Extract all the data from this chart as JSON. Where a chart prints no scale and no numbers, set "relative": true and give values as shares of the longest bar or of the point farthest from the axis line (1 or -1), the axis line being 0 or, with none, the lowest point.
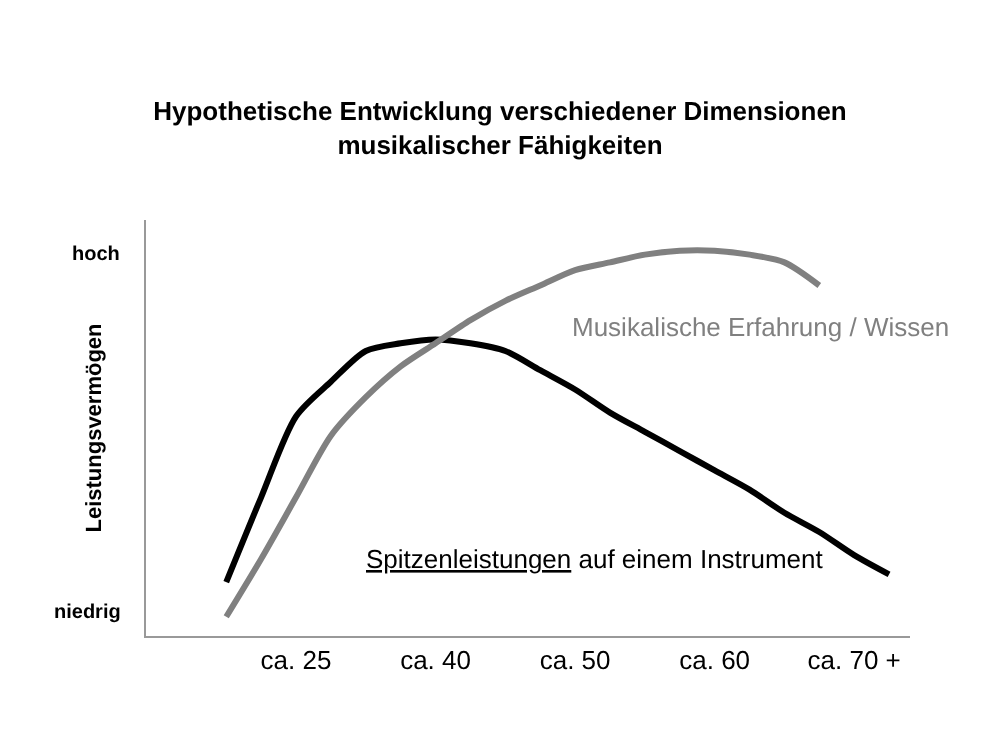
{
  "chart_data": {
    "type": "line",
    "title": "Hypothetische Entwicklung verschiedener Dimensionen\nmusikalischer Fähigkeiten",
    "ylabel": "Leistungsvermögen",
    "relative": true,
    "legend": false,
    "marker": "none",
    "line_style": "solid",
    "categories": [
      null,
      null,
      "ca. 25",
      null,
      null,
      null,
      "ca. 40",
      null,
      null,
      null,
      "ca. 50",
      null,
      null,
      null,
      "ca. 60",
      null,
      null,
      null,
      "ca. 70 +",
      null
    ],
    "series": [
      {
        "name": "Spitzenleistungen auf einem Instrument",
        "color": "#000000",
        "values": [
          0.14,
          0.36,
          0.57,
          0.66,
          0.74,
          0.76,
          0.77,
          0.76,
          0.74,
          0.69,
          0.64,
          0.58,
          0.53,
          0.48,
          0.43,
          0.38,
          0.32,
          0.27,
          0.21,
          0.16
        ]
      },
      {
        "name": "Musikalische Erfahrung / Wissen",
        "color": "#808080",
        "values": [
          0.05,
          0.2,
          0.36,
          0.52,
          0.62,
          0.7,
          0.76,
          0.82,
          0.87,
          0.91,
          0.95,
          0.97,
          0.99,
          1,
          1,
          0.99,
          0.97,
          0.91,
          null,
          null
        ]
      }
    ],
    "annotations": [
      "hoch",
      "niedrig"
    ]
  }
}
